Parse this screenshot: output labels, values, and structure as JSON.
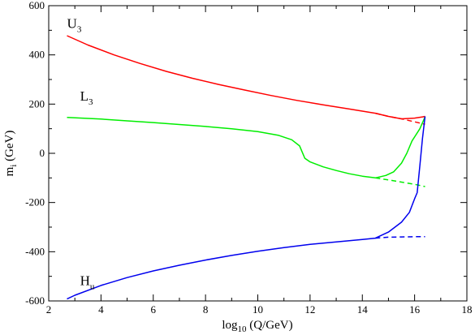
{
  "chart_data": {
    "type": "line",
    "title": "",
    "xlabel": {
      "main": "log",
      "sub": "10",
      "rest": " (Q/GeV)"
    },
    "ylabel": {
      "main": "m",
      "sub": "i",
      "rest": " (GeV)"
    },
    "xlim": [
      2,
      18
    ],
    "ylim": [
      -600,
      600
    ],
    "xticks": [
      2,
      4,
      6,
      8,
      10,
      12,
      14,
      16,
      18
    ],
    "yticks": [
      -600,
      -400,
      -200,
      0,
      200,
      400,
      600
    ],
    "grid": false,
    "legend": "none",
    "annotations": [
      {
        "main": "U",
        "sub": "3",
        "x": 2.7,
        "y": 510
      },
      {
        "main": "L",
        "sub": "3",
        "x": 3.2,
        "y": 215
      },
      {
        "main": "H",
        "sub": "u",
        "x": 3.2,
        "y": -535
      }
    ],
    "series": [
      {
        "color": "#ff0000",
        "style": "solid",
        "x": [
          2.7,
          3.5,
          4.5,
          5.5,
          6.5,
          7.5,
          8.5,
          9.5,
          10.5,
          11.5,
          12.5,
          13.5,
          14.5,
          15.0,
          15.5,
          16.0,
          16.3,
          16.4
        ],
        "y": [
          478,
          440,
          400,
          365,
          333,
          305,
          280,
          257,
          235,
          215,
          197,
          180,
          163,
          150,
          140,
          143,
          148,
          150
        ]
      },
      {
        "color": "#ff0000",
        "style": "dashed",
        "x": [
          14.5,
          15.0,
          15.5,
          16.0,
          16.4
        ],
        "y": [
          163,
          150,
          140,
          128,
          118
        ]
      },
      {
        "color": "#00ee00",
        "style": "solid",
        "x": [
          2.7,
          4.0,
          5.0,
          6.0,
          7.0,
          8.0,
          9.0,
          10.0,
          10.8,
          11.3,
          11.6,
          11.8,
          12.0,
          12.5,
          13.0,
          13.5,
          14.0,
          14.5,
          14.9,
          15.2,
          15.5,
          15.7,
          15.9,
          16.2,
          16.4
        ],
        "y": [
          146,
          139,
          132,
          125,
          117,
          109,
          100,
          88,
          73,
          55,
          30,
          -20,
          -35,
          -55,
          -70,
          -83,
          -93,
          -100,
          -90,
          -75,
          -40,
          0,
          50,
          100,
          148
        ]
      },
      {
        "color": "#00ee00",
        "style": "dashed",
        "x": [
          14.5,
          15.0,
          15.5,
          16.0,
          16.4
        ],
        "y": [
          -100,
          -108,
          -117,
          -126,
          -135
        ]
      },
      {
        "color": "#0000ee",
        "style": "solid",
        "x": [
          2.7,
          3.0,
          4.0,
          5.0,
          6.0,
          7.0,
          8.0,
          9.0,
          10.0,
          11.0,
          12.0,
          13.0,
          14.0,
          14.5,
          15.0,
          15.5,
          15.8,
          16.0,
          16.1,
          16.2,
          16.3,
          16.4
        ],
        "y": [
          -592,
          -577,
          -537,
          -505,
          -478,
          -455,
          -434,
          -415,
          -398,
          -383,
          -370,
          -360,
          -350,
          -345,
          -320,
          -280,
          -240,
          -185,
          -160,
          -50,
          60,
          150
        ]
      },
      {
        "color": "#0000ee",
        "style": "dashed",
        "x": [
          14.5,
          15.0,
          15.5,
          16.0,
          16.4
        ],
        "y": [
          -345,
          -341,
          -340,
          -339,
          -339
        ]
      }
    ]
  }
}
